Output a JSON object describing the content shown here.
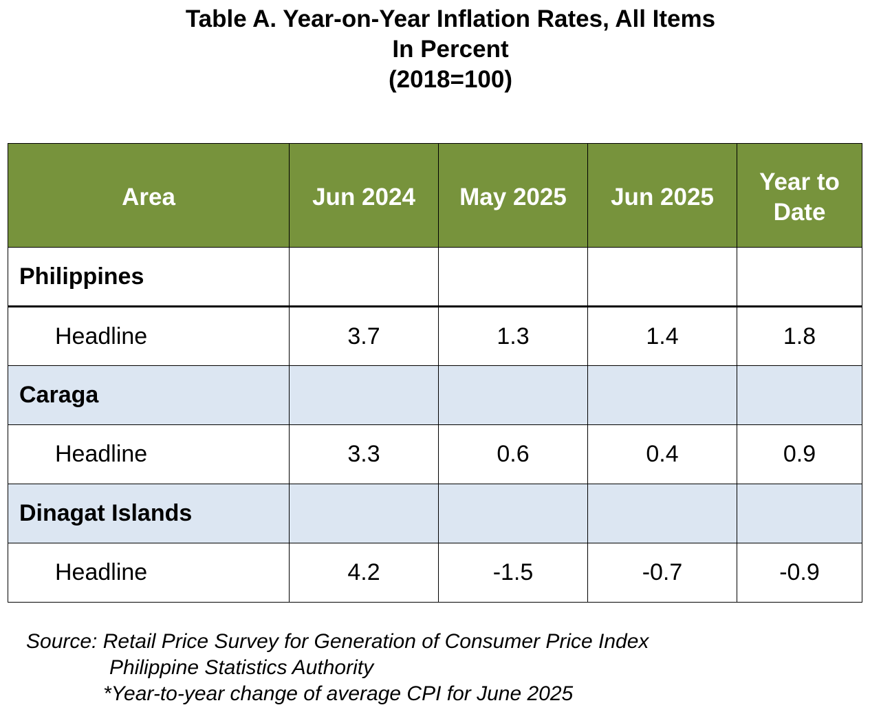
{
  "title": {
    "line1": "Table A. Year-on-Year Inflation Rates, All Items",
    "line2": "In Percent",
    "line3": "(2018=100)"
  },
  "table": {
    "headers": [
      "Area",
      "Jun 2024",
      "May 2025",
      "Jun 2025",
      "Year to Date"
    ],
    "rows": [
      {
        "type": "region",
        "area": "Philippines",
        "values": [
          "",
          "",
          "",
          ""
        ]
      },
      {
        "type": "data",
        "area": "Headline",
        "values": [
          "3.7",
          "1.3",
          "1.4",
          "1.8"
        ]
      },
      {
        "type": "region",
        "area": "Caraga",
        "values": [
          "",
          "",
          "",
          ""
        ]
      },
      {
        "type": "data",
        "area": "Headline",
        "values": [
          "3.3",
          "0.6",
          "0.4",
          "0.9"
        ]
      },
      {
        "type": "region",
        "area": "Dinagat Islands",
        "values": [
          "",
          "",
          "",
          ""
        ]
      },
      {
        "type": "data",
        "area": "Headline",
        "values": [
          "4.2",
          "-1.5",
          "-0.7",
          "-0.9"
        ]
      }
    ]
  },
  "source": {
    "line1": "Source: Retail Price Survey for Generation of Consumer Price Index",
    "line2": "Philippine Statistics Authority",
    "line3": "*Year-to-year change of average CPI for June 2025"
  },
  "colors": {
    "header_bg": "#77933c",
    "header_text": "#ffffff",
    "region_row_bg": "#dce6f2",
    "border": "#000000"
  }
}
